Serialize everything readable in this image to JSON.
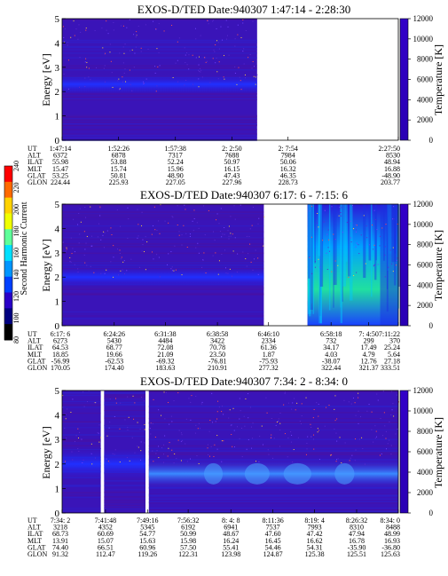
{
  "colorbar": {
    "label": "Second Harmonic Current",
    "ticks": [
      "240",
      "220",
      "200",
      "180",
      "160",
      "140",
      "120",
      "100",
      "80"
    ],
    "colors": [
      "#ff0000",
      "#ff6a00",
      "#ffd200",
      "#f0ff00",
      "#5eff9a",
      "#00e0ff",
      "#0096ff",
      "#0040ff",
      "#2a00c8",
      "#000080",
      "#000000"
    ]
  },
  "chart_data": [
    {
      "type": "heatmap",
      "title": "EXOS-D/TED   Date:940307   1:47:14 - 2:28:30",
      "ylabel": "Energy [eV]",
      "y2label": "Temperature [K]",
      "ylim": [
        0,
        5
      ],
      "yticks": [
        "0",
        "1",
        "2",
        "3",
        "4",
        "5"
      ],
      "y2lim": [
        0,
        12000
      ],
      "y2ticks": [
        "0",
        "2000",
        "4000",
        "6000",
        "8000",
        "10000",
        "12000"
      ],
      "row_labels": [
        "UT",
        "ALT",
        "ILAT",
        "MLT",
        "GLAT",
        "GLON"
      ],
      "columns": [
        [
          "1:47:14",
          "6372",
          "55.98",
          "15.47",
          "53.25",
          "224.44"
        ],
        [
          "1:52:26",
          "6878",
          "53.88",
          "15.74",
          "50.81",
          "225.93"
        ],
        [
          "1:57:38",
          "7317",
          "52.24",
          "15.96",
          "48.90",
          "227.05"
        ],
        [
          "2: 2:50",
          "7688",
          "50.97",
          "16.15",
          "47.43",
          "227.96"
        ],
        [
          "2: 7:54",
          "7984",
          "50.06",
          "16.32",
          "46.35",
          "228.73"
        ],
        [
          "2:27:50",
          "8530",
          "48.94",
          "16.88",
          "-48.90",
          "203.77"
        ]
      ],
      "column_fractions": [
        0,
        0.168,
        0.337,
        0.505,
        0.672,
        1
      ],
      "segments": [
        {
          "start": 0,
          "end": 0.58,
          "band_center_eV": 2.3
        }
      ],
      "band_color": "#2020ff"
    },
    {
      "type": "heatmap",
      "title": "EXOS-D/TED   Date:940307   6:17: 6 - 7:15: 6",
      "ylabel": "Energy [eV]",
      "y2label": "Temperature [K]",
      "ylim": [
        0,
        5
      ],
      "yticks": [
        "0",
        "1",
        "2",
        "3",
        "4",
        "5"
      ],
      "y2lim": [
        0,
        12000
      ],
      "y2ticks": [
        "0",
        "2000",
        "4000",
        "6000",
        "8000",
        "10000",
        "12000"
      ],
      "row_labels": [
        "UT",
        "ALT",
        "ILAT",
        "MLT",
        "GLAT",
        "GLON"
      ],
      "columns": [
        [
          "6:17: 6",
          "6273",
          "64.53",
          "18.85",
          "-56.99",
          "170.05"
        ],
        [
          "6:24:26",
          "5430",
          "68.77",
          "19.66",
          "-62.53",
          "174.40"
        ],
        [
          "6:31:38",
          "4484",
          "72.08",
          "21.09",
          "-69.32",
          "183.63"
        ],
        [
          "6:38:58",
          "3422",
          "70.78",
          "23.50",
          "-76.81",
          "210.91"
        ],
        [
          "6:46:10",
          "2334",
          "61.36",
          "1.87",
          "-75.93",
          "277.32"
        ],
        [
          "6:58:18",
          "732",
          "34.17",
          "4.03",
          "-38.07",
          "322.44"
        ],
        [
          "7: 4:50",
          "299",
          "17.49",
          "4.79",
          "12.76",
          "321.37"
        ],
        [
          "7:11:22",
          "370",
          "25.24",
          "5.64",
          "27.18",
          "333.51"
        ]
      ],
      "column_fractions": [
        0,
        0.155,
        0.307,
        0.462,
        0.614,
        0.8,
        0.912,
        1.0
      ],
      "segments": [
        {
          "start": 0,
          "end": 0.6,
          "band_center_eV": 2.0
        },
        {
          "start": 0.73,
          "end": 1.0,
          "band_center_eV": 0.8
        }
      ],
      "band_color": "#1f30ff"
    },
    {
      "type": "heatmap",
      "title": "EXOS-D/TED   Date:940307   7:34: 2 - 8:34: 0",
      "ylabel": "Energy [eV]",
      "y2label": "Temperature [K]",
      "ylim": [
        0,
        5
      ],
      "yticks": [
        "0",
        "1",
        "2",
        "3",
        "4",
        "5"
      ],
      "y2lim": [
        0,
        12000
      ],
      "y2ticks": [
        "0",
        "2000",
        "4000",
        "6000",
        "8000",
        "10000",
        "12000"
      ],
      "row_labels": [
        "UT",
        "ALT",
        "ILAT",
        "MLT",
        "GLAT",
        "GLON"
      ],
      "columns": [
        [
          "7:34: 2",
          "3218",
          "68.73",
          "13.91",
          "74.40",
          "91.32"
        ],
        [
          "7:41:48",
          "4352",
          "60.69",
          "15.07",
          "66.51",
          "112.47"
        ],
        [
          "7:49:16",
          "5345",
          "54.77",
          "15.63",
          "60.96",
          "119.26"
        ],
        [
          "7:56:32",
          "6192",
          "50.99",
          "15.98",
          "57.50",
          "122.31"
        ],
        [
          "8: 4: 8",
          "6941",
          "48.67",
          "16.24",
          "55.41",
          "123.98"
        ],
        [
          "8:11:36",
          "7537",
          "47.60",
          "16.45",
          "54.46",
          "124.87"
        ],
        [
          "8:19: 4",
          "7993",
          "47.42",
          "16.62",
          "54.31",
          "125.38"
        ],
        [
          "8:26:32",
          "8310",
          "47.94",
          "16.78",
          "-35.90",
          "125.51"
        ],
        [
          "8:34: 0",
          "8488",
          "48.99",
          "16.93",
          "-36.80",
          "125.63"
        ]
      ],
      "column_fractions": [
        0,
        0.129,
        0.254,
        0.375,
        0.502,
        0.627,
        0.751,
        0.876,
        1.0
      ],
      "segments": [
        {
          "start": 0,
          "end": 0.115,
          "band_center_eV": 2.0
        },
        {
          "start": 0.125,
          "end": 0.248,
          "band_center_eV": 2.0
        },
        {
          "start": 0.258,
          "end": 1.0,
          "band_center_eV": 1.6
        }
      ],
      "band_color": "#2a60ff"
    }
  ]
}
